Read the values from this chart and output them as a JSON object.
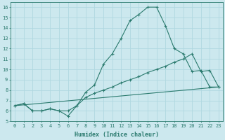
{
  "line1_x": [
    0,
    1,
    2,
    3,
    4,
    5,
    6,
    7,
    8,
    9,
    10,
    11,
    12,
    13,
    14,
    15,
    16,
    17,
    18,
    19,
    20,
    21,
    22,
    23
  ],
  "line1_y": [
    6.5,
    6.7,
    6.0,
    6.0,
    6.2,
    6.0,
    5.5,
    6.5,
    7.8,
    8.5,
    10.5,
    11.5,
    13.0,
    14.7,
    15.3,
    16.0,
    16.0,
    14.2,
    12.0,
    11.5,
    9.8,
    9.9,
    8.3,
    8.3
  ],
  "line2_x": [
    0,
    1,
    2,
    3,
    4,
    5,
    6,
    7,
    8,
    9,
    10,
    11,
    12,
    13,
    14,
    15,
    16,
    17,
    18,
    19,
    20,
    21,
    22,
    23
  ],
  "line2_y": [
    6.5,
    6.7,
    6.0,
    6.0,
    6.2,
    6.0,
    6.0,
    6.5,
    7.3,
    7.7,
    8.0,
    8.3,
    8.7,
    9.0,
    9.3,
    9.7,
    10.0,
    10.3,
    10.7,
    11.0,
    11.5,
    9.8,
    9.9,
    8.3
  ],
  "line3_x": [
    0,
    23
  ],
  "line3_y": [
    6.5,
    8.3
  ],
  "color": "#2a7a6e",
  "bg_color": "#cce8ee",
  "grid_color": "#b0d8e0",
  "xlabel": "Humidex (Indice chaleur)",
  "xlim": [
    -0.5,
    23.5
  ],
  "ylim": [
    5,
    16.5
  ],
  "yticks": [
    5,
    6,
    7,
    8,
    9,
    10,
    11,
    12,
    13,
    14,
    15,
    16
  ],
  "xticks": [
    0,
    1,
    2,
    3,
    4,
    5,
    6,
    7,
    8,
    9,
    10,
    11,
    12,
    13,
    14,
    15,
    16,
    17,
    18,
    19,
    20,
    21,
    22,
    23
  ],
  "tick_fontsize": 5,
  "xlabel_fontsize": 6,
  "linewidth": 0.8,
  "markersize": 3
}
